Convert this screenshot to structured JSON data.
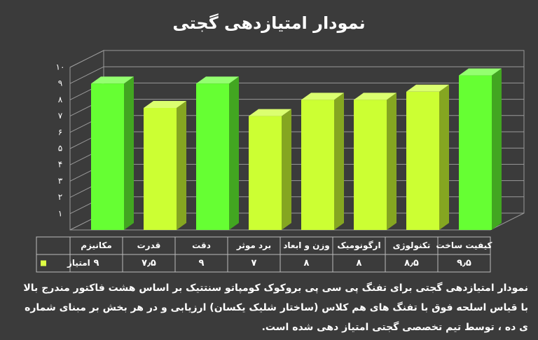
{
  "chart_data": {
    "type": "bar3d",
    "title": "نمودار امتیازدهی گجتی",
    "categories": [
      "مکانیزم",
      "قدرت",
      "دقت",
      "برد موثر",
      "وزن و ابعاد",
      "ارگونومیک",
      "تکنولوژی",
      "کیفیت ساخت"
    ],
    "series": [
      {
        "name": "امتیاز",
        "color": "#ddff44",
        "values": [
          9,
          7.5,
          9,
          7,
          8,
          8,
          8.5,
          9.5
        ],
        "value_labels": [
          "۹",
          "۷٫۵",
          "۹",
          "۷",
          "۸",
          "۸",
          "۸٫۵",
          "۹٫۵"
        ],
        "colors": [
          "#66ff33",
          "#ccff33",
          "#66ff33",
          "#ccff33",
          "#ccff33",
          "#ccff33",
          "#ccff33",
          "#66ff33"
        ]
      }
    ],
    "ylim": [
      0,
      10
    ],
    "yticks": [
      {
        "value": 1,
        "label": "۱"
      },
      {
        "value": 2,
        "label": "۲"
      },
      {
        "value": 3,
        "label": "۳"
      },
      {
        "value": 4,
        "label": "۴"
      },
      {
        "value": 5,
        "label": "۵"
      },
      {
        "value": 6,
        "label": "۶"
      },
      {
        "value": 7,
        "label": "۷"
      },
      {
        "value": 8,
        "label": "۸"
      },
      {
        "value": 9,
        "label": "۹"
      },
      {
        "value": 10,
        "label": "۱۰"
      }
    ],
    "grid": true,
    "caption": [
      "نمودار امتیازدهی گجتی برای تفنگ پی سی پی بروکوک کومپاتو سنتتیک بر اساس هشت فاکتور مندرج بالا",
      "با قیاس اسلحه فوق با تفنگ های هم کلاس (ساختار شلیک یکسان) ارزیابی و در هر بخش بر مبنای شماره",
      "ی ده ، توسط تیم تخصصی گجتی امتیاز دهی شده است."
    ]
  }
}
